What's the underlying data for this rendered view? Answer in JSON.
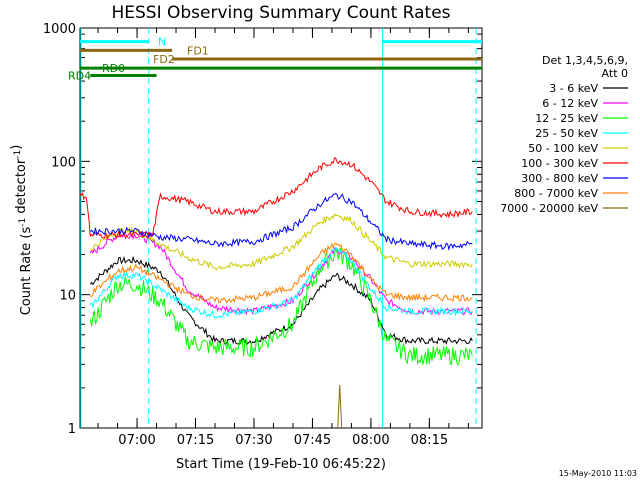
{
  "chart_data": {
    "type": "line",
    "title": "HESSI Observing Summary Count Rates",
    "xlabel": "Start Time (19-Feb-10 06:45:22)",
    "ylabel": "Count Rate (s⁻¹ detector⁻¹)",
    "yscale": "log",
    "ylim": [
      1,
      1000
    ],
    "xlim": [
      "06:45:22",
      "08:28:30"
    ],
    "x_ticks": [
      "07:00",
      "07:15",
      "07:30",
      "07:45",
      "08:00",
      "08:15"
    ],
    "y_ticks": [
      "1",
      "10",
      "100",
      "1000"
    ],
    "legend_title": [
      "Det 1,3,4,5,6,9,",
      "Att 0"
    ],
    "legend_position": "right",
    "series": [
      {
        "name": "3 - 6 keV",
        "color": "#000000",
        "x": [
          "06:48",
          "06:55",
          "07:00",
          "07:06",
          "07:13",
          "07:20",
          "07:30",
          "07:40",
          "07:47",
          "07:51",
          "07:55",
          "08:00",
          "08:04",
          "08:10",
          "08:20",
          "08:26"
        ],
        "values": [
          12,
          18,
          18,
          15,
          7,
          4.5,
          4.5,
          6,
          11,
          14,
          12,
          9,
          5,
          4.5,
          4.5,
          4.5
        ]
      },
      {
        "name": "6 - 12 keV",
        "color": "#ff00ff",
        "x": [
          "06:48",
          "06:55",
          "07:00",
          "07:06",
          "07:13",
          "07:20",
          "07:30",
          "07:40",
          "07:47",
          "07:51",
          "07:55",
          "08:00",
          "08:04",
          "08:10",
          "08:20",
          "08:26"
        ],
        "values": [
          20,
          28,
          28,
          23,
          11,
          8,
          7.5,
          9,
          16,
          22,
          19,
          13,
          9,
          7.5,
          7.5,
          7.5
        ]
      },
      {
        "name": "12 - 25 keV",
        "color": "#00ff00",
        "x": [
          "06:48",
          "06:55",
          "07:00",
          "07:06",
          "07:13",
          "07:20",
          "07:30",
          "07:40",
          "07:47",
          "07:51",
          "07:55",
          "08:00",
          "08:04",
          "08:10",
          "08:20",
          "08:26"
        ],
        "values": [
          6,
          12,
          12,
          9,
          4.5,
          4,
          4,
          6,
          16,
          21,
          17,
          9,
          4.5,
          3.5,
          3.5,
          3.5
        ]
      },
      {
        "name": "25 - 50 keV",
        "color": "#00ffff",
        "x": [
          "06:48",
          "06:55",
          "07:00",
          "07:06",
          "07:13",
          "07:20",
          "07:30",
          "07:40",
          "07:47",
          "07:51",
          "07:55",
          "08:00",
          "08:04",
          "08:10",
          "08:20",
          "08:26"
        ],
        "values": [
          8,
          14,
          14,
          11,
          8,
          7,
          7.5,
          9,
          17,
          22,
          18,
          11,
          8,
          7.5,
          7.5,
          7.5
        ]
      },
      {
        "name": "50 - 100 keV",
        "color": "#cccc00",
        "x": [
          "06:48",
          "06:55",
          "07:00",
          "07:06",
          "07:13",
          "07:20",
          "07:30",
          "07:40",
          "07:47",
          "07:51",
          "07:55",
          "08:00",
          "08:04",
          "08:10",
          "08:20",
          "08:26"
        ],
        "values": [
          22,
          30,
          30,
          24,
          19,
          16,
          17,
          23,
          35,
          40,
          36,
          25,
          19,
          17,
          17,
          17
        ]
      },
      {
        "name": "100 - 300 keV",
        "color": "#ff0000",
        "x": [
          "06:45:22",
          "06:47",
          "06:48",
          "06:55",
          "07:00",
          "07:04",
          "07:06",
          "07:13",
          "07:20",
          "07:30",
          "07:40",
          "07:47",
          "07:51",
          "07:55",
          "08:00",
          "08:04",
          "08:10",
          "08:20",
          "08:26"
        ],
        "values": [
          55,
          55,
          28,
          28,
          28,
          28,
          55,
          50,
          42,
          42,
          60,
          90,
          103,
          95,
          70,
          50,
          42,
          40,
          42
        ]
      },
      {
        "name": "300 - 800 keV",
        "color": "#0000ff",
        "x": [
          "06:48",
          "06:55",
          "07:00",
          "07:06",
          "07:13",
          "07:20",
          "07:30",
          "07:40",
          "07:47",
          "07:51",
          "07:55",
          "08:00",
          "08:04",
          "08:10",
          "08:20",
          "08:26"
        ],
        "values": [
          30,
          30,
          30,
          27,
          26,
          24,
          25,
          32,
          48,
          56,
          50,
          35,
          26,
          24,
          23,
          24
        ]
      },
      {
        "name": "800 - 7000 keV",
        "color": "#ff8000",
        "x": [
          "06:48",
          "06:55",
          "07:00",
          "07:06",
          "07:13",
          "07:20",
          "07:30",
          "07:40",
          "07:47",
          "07:51",
          "07:55",
          "08:00",
          "08:04",
          "08:10",
          "08:20",
          "08:26"
        ],
        "values": [
          10,
          15,
          16,
          13,
          10,
          9,
          9.5,
          11.5,
          20,
          24,
          20,
          13,
          10,
          9.5,
          9.5,
          9.5
        ]
      },
      {
        "name": "7000 - 20000 keV",
        "color": "#8b6914",
        "x": [
          "07:51:30",
          "07:52",
          "07:52:30"
        ],
        "values": [
          1,
          2.1,
          1
        ]
      }
    ],
    "flags": [
      {
        "name": "N",
        "color": "#00ffff",
        "label_color": "#00ffff",
        "segments": [
          [
            "06:45:22",
            "07:03"
          ],
          [
            "08:03",
            "08:28:30"
          ]
        ],
        "level": 790
      },
      {
        "name": "FD1",
        "color": "#8b6914",
        "label_color": "#8b6914",
        "segments": [
          [
            "06:45:22",
            "07:09"
          ]
        ],
        "level": 680
      },
      {
        "name": "FD2",
        "color": "#8b6914",
        "label_color": "#8b6914",
        "segments": [
          [
            "07:09",
            "08:28:30"
          ]
        ],
        "level": 585
      },
      {
        "name": "RD0",
        "color": "#008000",
        "label_color": "#008000",
        "segments": [
          [
            "06:45:22",
            "06:48"
          ],
          [
            "06:48",
            "08:28:30"
          ]
        ],
        "level": 500
      },
      {
        "name": "RD4",
        "color": "#008000",
        "label_color": "#008000",
        "segments": [
          [
            "06:48",
            "07:05"
          ]
        ],
        "level": 440
      }
    ],
    "vertical_markers": [
      {
        "time": "06:45:22",
        "style": "solid",
        "color": "#00ffff"
      },
      {
        "time": "07:03",
        "style": "dashed",
        "color": "#00ffff"
      },
      {
        "time": "08:03",
        "style": "solid",
        "color": "#00ffff"
      },
      {
        "time": "08:27",
        "style": "dashed",
        "color": "#00ffff"
      }
    ],
    "grid": false
  },
  "footer_stamp": "15-May-2010 11:03"
}
